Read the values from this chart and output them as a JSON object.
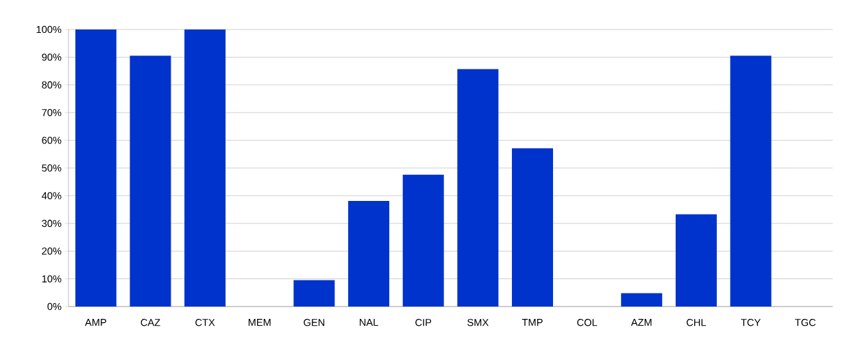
{
  "chart_data": {
    "type": "bar",
    "categories": [
      "AMP",
      "CAZ",
      "CTX",
      "MEM",
      "GEN",
      "NAL",
      "CIP",
      "SMX",
      "TMP",
      "COL",
      "AZM",
      "CHL",
      "TCY",
      "TGC"
    ],
    "values": [
      100,
      90.5,
      100,
      0,
      9.5,
      38.1,
      47.6,
      85.7,
      57.1,
      0,
      4.8,
      33.3,
      90.5,
      0
    ],
    "color": "#0033cc",
    "ylim": [
      0,
      100
    ],
    "yticks": [
      {
        "value": 0,
        "label": "0%"
      },
      {
        "value": 10,
        "label": "10%"
      },
      {
        "value": 20,
        "label": "20%"
      },
      {
        "value": 30,
        "label": "30%"
      },
      {
        "value": 40,
        "label": "40%"
      },
      {
        "value": 50,
        "label": "50%"
      },
      {
        "value": 60,
        "label": "60%"
      },
      {
        "value": 70,
        "label": "70%"
      },
      {
        "value": 80,
        "label": "80%"
      },
      {
        "value": 90,
        "label": "90%"
      },
      {
        "value": 100,
        "label": "100%"
      }
    ],
    "grid": "y"
  }
}
